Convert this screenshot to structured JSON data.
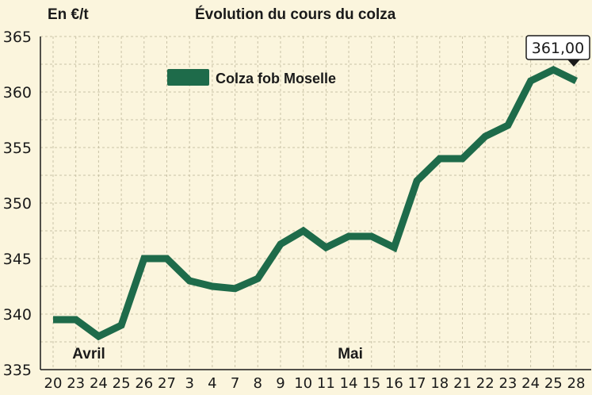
{
  "chart_data": {
    "type": "line",
    "title": "Évolution du cours du colza",
    "ylabel": "En €/t",
    "xlabel": "",
    "ylim": [
      335,
      365
    ],
    "yticks": [
      335,
      340,
      345,
      350,
      355,
      360,
      365
    ],
    "categories": [
      "20",
      "23",
      "24",
      "25",
      "26",
      "27",
      "3",
      "4",
      "7",
      "8",
      "9",
      "10",
      "11",
      "14",
      "15",
      "16",
      "17",
      "18",
      "21",
      "22",
      "23",
      "24",
      "25",
      "28"
    ],
    "month_labels": [
      {
        "label": "Avril",
        "at_index": 1.5
      },
      {
        "label": "Mai",
        "at_index": 13
      }
    ],
    "series": [
      {
        "name": "Colza fob Moselle",
        "color": "#1e6b4a",
        "values": [
          339.5,
          339.5,
          338,
          339,
          345,
          345,
          343,
          342.5,
          342.3,
          343.2,
          346.3,
          347.5,
          346,
          347,
          347,
          346,
          352,
          354,
          354,
          356,
          357,
          361,
          362,
          361
        ]
      }
    ],
    "callout": {
      "label": "361,00",
      "at_index": 23
    },
    "grid": true,
    "legend_position": "top-left"
  },
  "colors": {
    "background": "#fbf5dd",
    "grid": "#c9c2a6",
    "line": "#1e6b4a",
    "axis": "#1a1a1a"
  }
}
